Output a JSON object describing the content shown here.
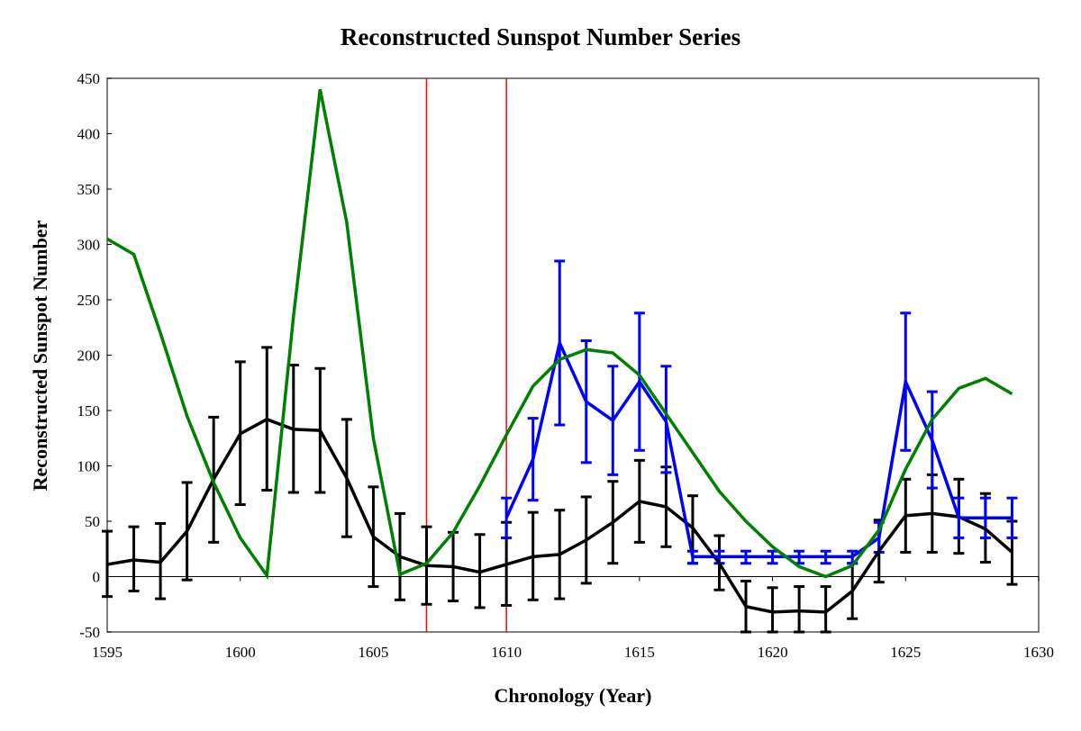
{
  "chart_data": {
    "type": "line",
    "title": "Reconstructed Sunspot Number Series",
    "xlabel": "Chronology (Year)",
    "ylabel": "Reconstructed Sunspot Number",
    "xlim": [
      1595,
      1630
    ],
    "ylim": [
      -50,
      450
    ],
    "xticks": [
      "1595",
      "1600",
      "1605",
      "1610",
      "1615",
      "1620",
      "1625",
      "1630"
    ],
    "yticks": [
      "-50",
      "0",
      "50",
      "100",
      "150",
      "200",
      "250",
      "300",
      "350",
      "400",
      "450"
    ],
    "grid": false,
    "legend": "none",
    "vertical_markers": {
      "x": [
        1607,
        1610
      ],
      "color": "#ff0000"
    },
    "series": [
      {
        "color": "#008000",
        "x": [
          1595,
          1596,
          1597,
          1598,
          1599,
          1600,
          1601,
          1602,
          1603,
          1604,
          1605,
          1606,
          1607,
          1608,
          1609,
          1610,
          1611,
          1612,
          1613,
          1614,
          1615,
          1616,
          1617,
          1618,
          1619,
          1620,
          1621,
          1622,
          1623,
          1624,
          1625,
          1626,
          1627,
          1628,
          1629
        ],
        "y": [
          305,
          291,
          220,
          145,
          85,
          35,
          1,
          235,
          440,
          320,
          125,
          2,
          12,
          40,
          82,
          128,
          172,
          196,
          205,
          202,
          182,
          147,
          112,
          77,
          50,
          27,
          9,
          0,
          10,
          42,
          97,
          142,
          170,
          179,
          165
        ]
      },
      {
        "color": "#000000",
        "x": [
          1595,
          1596,
          1597,
          1598,
          1599,
          1600,
          1601,
          1602,
          1603,
          1604,
          1605,
          1606,
          1607,
          1608,
          1609,
          1610,
          1611,
          1612,
          1613,
          1614,
          1615,
          1616,
          1617,
          1618,
          1619,
          1620,
          1621,
          1622,
          1623,
          1624,
          1625,
          1626,
          1627,
          1628,
          1629
        ],
        "y": [
          11,
          15,
          13,
          41,
          88,
          129,
          142,
          133,
          132,
          89,
          36,
          18,
          10,
          9,
          4,
          11,
          18,
          20,
          33,
          49,
          68,
          63,
          44,
          12,
          -27,
          -32,
          -31,
          -32,
          -13,
          23,
          55,
          57,
          54,
          43,
          22
        ],
        "err_high": [
          41,
          45,
          48,
          85,
          144,
          194,
          207,
          191,
          188,
          142,
          81,
          57,
          45,
          40,
          38,
          49,
          58,
          60,
          72,
          86,
          105,
          99,
          73,
          37,
          -4,
          -10,
          -9,
          -9,
          12,
          51,
          88,
          92,
          88,
          75,
          50
        ],
        "err_low": [
          -18,
          -13,
          -20,
          -3,
          31,
          65,
          78,
          76,
          76,
          36,
          -9,
          -21,
          -25,
          -22,
          -28,
          -26,
          -21,
          -20,
          -6,
          12,
          31,
          27,
          12,
          -12,
          -50,
          -50,
          -50,
          -50,
          -38,
          -5,
          22,
          22,
          21,
          13,
          -7
        ]
      },
      {
        "color": "#0000ff",
        "x": [
          1610,
          1611,
          1612,
          1613,
          1614,
          1615,
          1616,
          1617,
          1618,
          1619,
          1620,
          1621,
          1622,
          1623,
          1624,
          1625,
          1626,
          1627,
          1628,
          1629
        ],
        "y": [
          53,
          106,
          211,
          158,
          141,
          176,
          140,
          18,
          18,
          18,
          18,
          18,
          18,
          18,
          35,
          176,
          123,
          53,
          53,
          53
        ],
        "err_high": [
          71,
          143,
          285,
          213,
          190,
          238,
          190,
          23,
          23,
          23,
          23,
          23,
          23,
          23,
          49,
          238,
          167,
          71,
          71,
          71
        ],
        "err_low": [
          35,
          69,
          137,
          103,
          92,
          114,
          94,
          12,
          12,
          12,
          12,
          12,
          12,
          12,
          22,
          114,
          80,
          35,
          35,
          35
        ]
      }
    ]
  }
}
